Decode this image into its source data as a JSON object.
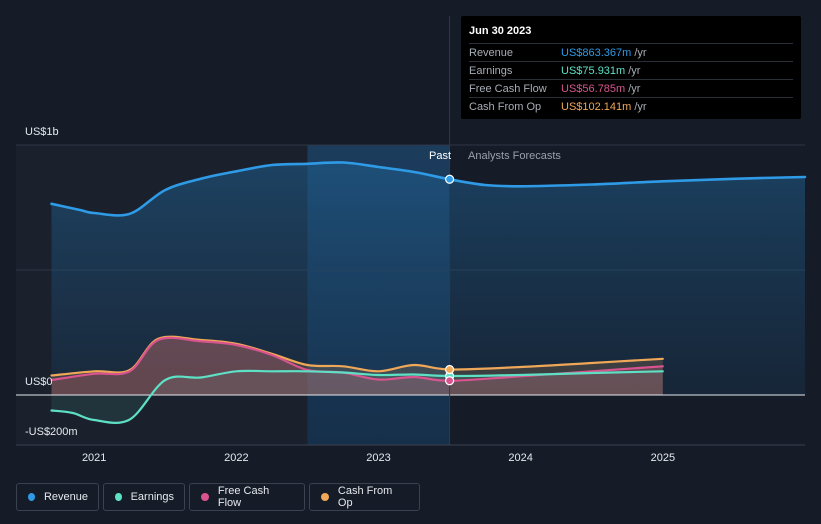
{
  "chart_data": {
    "type": "line",
    "x_min": 2020.45,
    "x_max": 2026.0,
    "ylim": [
      -200,
      1000
    ],
    "y_axis_labels": [
      {
        "value": 1000,
        "label": "US$1b"
      },
      {
        "value": 0,
        "label": "US$0"
      },
      {
        "value": -200,
        "label": "-US$200m"
      }
    ],
    "x_ticks": [
      {
        "value": 2021.0,
        "label": "2021"
      },
      {
        "value": 2022.0,
        "label": "2022"
      },
      {
        "value": 2023.0,
        "label": "2023"
      },
      {
        "value": 2024.0,
        "label": "2024"
      },
      {
        "value": 2025.0,
        "label": "2025"
      }
    ],
    "past_label": "Past",
    "forecast_label": "Analysts Forecasts",
    "divider_x": 2023.5,
    "highlight_start": 2022.5,
    "series": [
      {
        "name": "Revenue",
        "color": "#2f9be6",
        "points": [
          [
            2020.7,
            765
          ],
          [
            2020.9,
            740
          ],
          [
            2021.0,
            728
          ],
          [
            2021.25,
            725
          ],
          [
            2021.5,
            820
          ],
          [
            2021.75,
            865
          ],
          [
            2022.0,
            895
          ],
          [
            2022.25,
            920
          ],
          [
            2022.5,
            925
          ],
          [
            2022.75,
            930
          ],
          [
            2023.0,
            912
          ],
          [
            2023.25,
            892
          ],
          [
            2023.5,
            863
          ],
          [
            2023.75,
            840
          ],
          [
            2024.0,
            835
          ],
          [
            2024.5,
            842
          ],
          [
            2025.0,
            855
          ],
          [
            2025.5,
            865
          ],
          [
            2026.0,
            872
          ]
        ]
      },
      {
        "name": "Earnings",
        "color": "#5ee0c5",
        "points": [
          [
            2020.7,
            -62
          ],
          [
            2020.85,
            -72
          ],
          [
            2021.0,
            -100
          ],
          [
            2021.25,
            -98
          ],
          [
            2021.5,
            60
          ],
          [
            2021.75,
            70
          ],
          [
            2022.0,
            95
          ],
          [
            2022.25,
            95
          ],
          [
            2022.5,
            95
          ],
          [
            2022.75,
            90
          ],
          [
            2023.0,
            80
          ],
          [
            2023.25,
            82
          ],
          [
            2023.5,
            76
          ],
          [
            2024.0,
            80
          ],
          [
            2024.5,
            88
          ],
          [
            2025.0,
            95
          ]
        ]
      },
      {
        "name": "Free Cash Flow",
        "color": "#d9548f",
        "points": [
          [
            2020.7,
            60
          ],
          [
            2021.0,
            85
          ],
          [
            2021.25,
            95
          ],
          [
            2021.45,
            220
          ],
          [
            2021.75,
            215
          ],
          [
            2022.0,
            200
          ],
          [
            2022.25,
            160
          ],
          [
            2022.5,
            100
          ],
          [
            2022.75,
            90
          ],
          [
            2023.0,
            62
          ],
          [
            2023.25,
            72
          ],
          [
            2023.5,
            57
          ],
          [
            2024.0,
            75
          ],
          [
            2024.5,
            95
          ],
          [
            2025.0,
            115
          ]
        ]
      },
      {
        "name": "Cash From Op",
        "color": "#efa758",
        "points": [
          [
            2020.7,
            78
          ],
          [
            2021.0,
            95
          ],
          [
            2021.25,
            100
          ],
          [
            2021.45,
            225
          ],
          [
            2021.75,
            220
          ],
          [
            2022.0,
            205
          ],
          [
            2022.25,
            165
          ],
          [
            2022.5,
            120
          ],
          [
            2022.75,
            115
          ],
          [
            2023.0,
            95
          ],
          [
            2023.25,
            120
          ],
          [
            2023.5,
            102
          ],
          [
            2024.0,
            112
          ],
          [
            2024.5,
            128
          ],
          [
            2025.0,
            145
          ]
        ]
      }
    ]
  },
  "tooltip": {
    "date": "Jun 30 2023",
    "rows": [
      {
        "name": "Revenue",
        "value": "US$863.367m",
        "unit": "/yr",
        "color": "#2f9be6"
      },
      {
        "name": "Earnings",
        "value": "US$75.931m",
        "unit": "/yr",
        "color": "#5ee0c5"
      },
      {
        "name": "Free Cash Flow",
        "value": "US$56.785m",
        "unit": "/yr",
        "color": "#d9548f"
      },
      {
        "name": "Cash From Op",
        "value": "US$102.141m",
        "unit": "/yr",
        "color": "#efa758"
      }
    ]
  },
  "legend": [
    {
      "name": "Revenue",
      "color": "#2f9be6"
    },
    {
      "name": "Earnings",
      "color": "#5ee0c5"
    },
    {
      "name": "Free Cash Flow",
      "color": "#d9548f"
    },
    {
      "name": "Cash From Op",
      "color": "#efa758"
    }
  ]
}
